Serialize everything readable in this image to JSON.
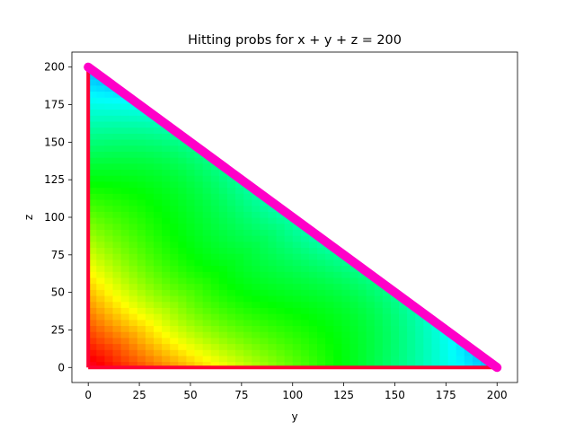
{
  "chart_data": {
    "type": "heatmap",
    "title": "Hitting probs for x + y + z = 200",
    "xlabel": "y",
    "ylabel": "z",
    "xlim": [
      -8,
      210
    ],
    "ylim": [
      -10,
      210
    ],
    "xticks": [
      0,
      25,
      50,
      75,
      100,
      125,
      150,
      175,
      200
    ],
    "yticks": [
      0,
      25,
      50,
      75,
      100,
      125,
      150,
      175,
      200
    ],
    "grid": false,
    "total": 200,
    "colormap": "hsv-like (red → yellow → green → cyan → blue along low to high value)",
    "region": "triangle with vertices (0,0), (200,0), (0,200)",
    "boundary": {
      "edge": "y + z = 200",
      "color": "#ff00c8",
      "description": "hypotenuse drawn as thick magenta band"
    },
    "colors": {
      "low": "#ff0033",
      "mid_low": "#ffe000",
      "mid": "#00ff20",
      "mid_high": "#00ffe0",
      "high": "#00a8ff",
      "edge": "#ff00c8"
    }
  }
}
